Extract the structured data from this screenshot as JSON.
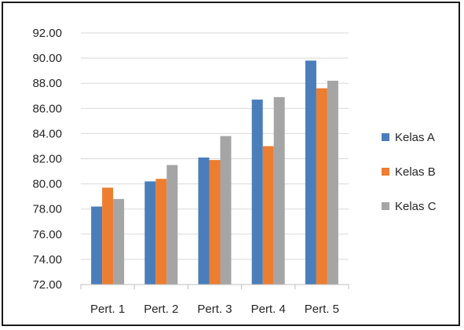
{
  "chart_data": {
    "type": "bar",
    "categories": [
      "Pert. 1",
      "Pert. 2",
      "Pert. 3",
      "Pert. 4",
      "Pert. 5"
    ],
    "series": [
      {
        "name": "Kelas A",
        "color": "#4A7EBB",
        "values": [
          78.2,
          80.2,
          82.1,
          86.7,
          89.8
        ]
      },
      {
        "name": "Kelas B",
        "color": "#ED7D31",
        "values": [
          79.7,
          80.4,
          81.9,
          83.0,
          87.6
        ]
      },
      {
        "name": "Kelas C",
        "color": "#A5A5A5",
        "values": [
          78.8,
          81.5,
          83.8,
          86.9,
          88.2
        ]
      }
    ],
    "ylim": [
      72,
      92
    ],
    "yticks": [
      "72.00",
      "74.00",
      "76.00",
      "78.00",
      "80.00",
      "82.00",
      "84.00",
      "86.00",
      "88.00",
      "90.00",
      "92.00"
    ],
    "title": "",
    "xlabel": "",
    "ylabel": "",
    "grid": true,
    "legend": "right"
  }
}
